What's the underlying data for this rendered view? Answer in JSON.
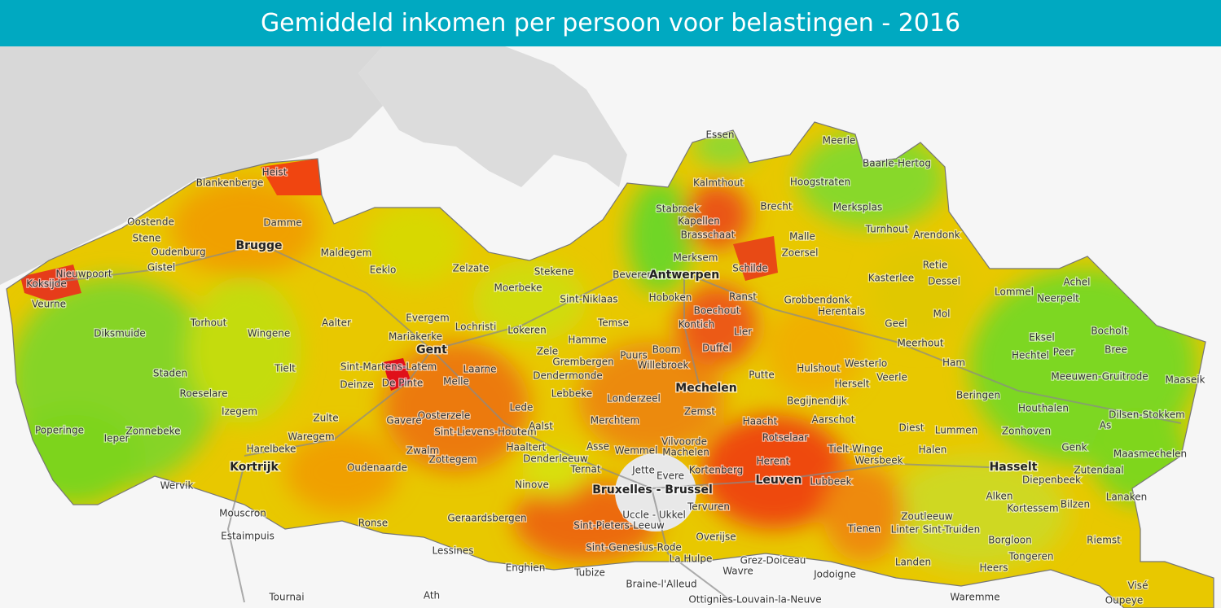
{
  "header": {
    "title": "Gemiddeld inkomen per persoon voor belastingen - 2016"
  },
  "map": {
    "cities": [
      "Brugge",
      "Gent",
      "Antwerpen",
      "Mechelen",
      "Leuven",
      "Hasselt",
      "Kortrijk",
      "Bruxelles - Brussel"
    ],
    "places": [
      "Essen",
      "Meerle",
      "Baarle-Hertog",
      "Kalmthout",
      "Hoogstraten",
      "Blankenberge",
      "Heist",
      "Stabroek",
      "Kapellen",
      "Brecht",
      "Merksplas",
      "Oostende",
      "Damme",
      "Turnhout",
      "Brasschaat",
      "Arendonk",
      "Stene",
      "Malle",
      "Oudenburg",
      "Maldegem",
      "Zoersel",
      "Eeklo",
      "Zelzate",
      "Stekene",
      "Merksem",
      "Schilde",
      "Retie",
      "Gistel",
      "Nieuwpoort",
      "Beveren",
      "Kasterlee",
      "Dessel",
      "Koksijde",
      "Moerbeke",
      "Lommel",
      "Achel",
      "Veurne",
      "Sint-Niklaas",
      "Hoboken",
      "Ranst",
      "Grobbendonk",
      "Neerpelt",
      "Evergem",
      "Boechout",
      "Herentals",
      "Mol",
      "Torhout",
      "Aalter",
      "Lochristi",
      "Temse",
      "Kontich",
      "Geel",
      "Bocholt",
      "Diksmuide",
      "Wingene",
      "Mariakerke",
      "Lokeren",
      "Hamme",
      "Lier",
      "Meerhout",
      "Eksel",
      "Zele",
      "Boom",
      "Duffel",
      "Westerlo",
      "Ham",
      "Bree",
      "Grembergen",
      "Puurs",
      "Peer",
      "Hechtel",
      "Sint-Martens-Latem",
      "Tielt",
      "Staden",
      "Laarne",
      "Willebroek",
      "Dendermonde",
      "Hulshout",
      "Herselt",
      "Veerle",
      "Meeuwen-Gruitrode",
      "Maaseik",
      "Roeselare",
      "De Pinte",
      "Deinze",
      "Melle",
      "Putte",
      "Lebbeke",
      "Beringen",
      "Izegem",
      "Begijnendijk",
      "Houthalen",
      "Lede",
      "Londerzeel",
      "Zulte",
      "Oosterzele",
      "Zemst",
      "Aarschot",
      "Dilsen-Stokkem",
      "Gavere",
      "Poperinge",
      "Ieper",
      "Zonnebeke",
      "Waregem",
      "Sint-Lievens-Houtem",
      "Aalst",
      "Merchtem",
      "Haacht",
      "Diest",
      "Lummen",
      "Zonhoven",
      "As",
      "Harelbeke",
      "Zwalm",
      "Haaltert",
      "Asse",
      "Wemmel",
      "Vilvoorde",
      "Rotselaar",
      "Tielt-Winge",
      "Halen",
      "Genk",
      "Maasmechelen",
      "Zottegem",
      "Denderleeuw",
      "Machelen",
      "Wersbeek",
      "Oudenaarde",
      "Ternat",
      "Jette",
      "Herent",
      "Diepenbeek",
      "Zutendaal",
      "Evere",
      "Kortenberg",
      "Wervik",
      "Ninove",
      "Lubbeek",
      "Lanaken",
      "Alken",
      "Bilzen",
      "Mouscron",
      "Ronse",
      "Tervuren",
      "Kortessem",
      "Geraardsbergen",
      "Uccle - Ukkel",
      "Zoutleeuw",
      "Estaimpuis",
      "Sint-Pieters-Leeuw",
      "Tienen",
      "Linter",
      "Sint-Truiden",
      "Riemst",
      "Overijse",
      "Borgloon",
      "Lessines",
      "Sint-Genesius-Rode",
      "Tongeren",
      "Landen",
      "La Hulpe",
      "Grez-Doiceau",
      "Enghien",
      "Wavre",
      "Jodoigne",
      "Heers",
      "Tubize",
      "Braine-l'Alleud",
      "Visé",
      "Tournai",
      "Ath",
      "Ottignies-Louvain-la-Neuve",
      "Waremme",
      "Oupeye"
    ]
  }
}
